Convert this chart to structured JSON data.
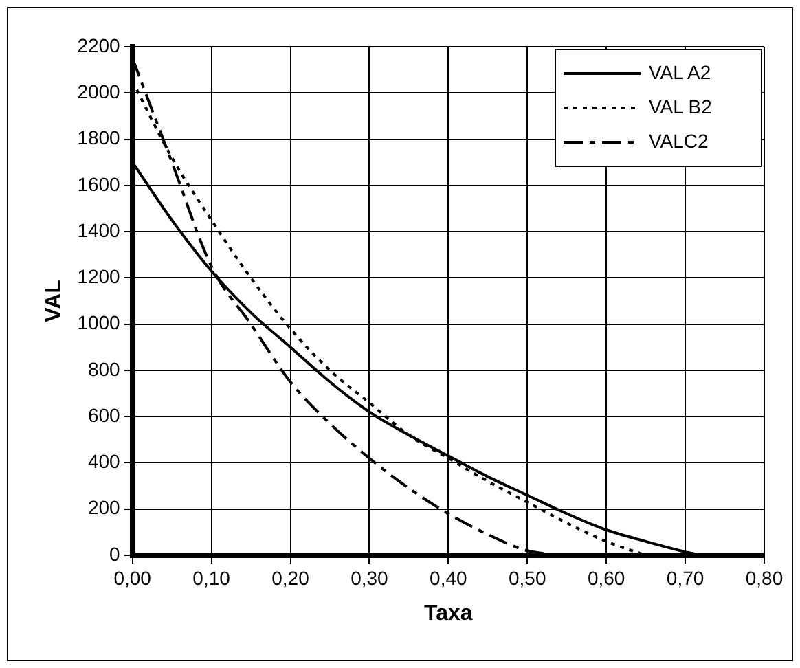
{
  "chart_data": {
    "type": "line",
    "xlabel": "Taxa",
    "ylabel": "VAL",
    "xlim": [
      0,
      0.8
    ],
    "ylim": [
      0,
      2200
    ],
    "xticks": [
      {
        "value": 0,
        "label": "0,00"
      },
      {
        "value": 0.1,
        "label": "0,10"
      },
      {
        "value": 0.2,
        "label": "0,20"
      },
      {
        "value": 0.3,
        "label": "0,30"
      },
      {
        "value": 0.4,
        "label": "0,40"
      },
      {
        "value": 0.5,
        "label": "0,50"
      },
      {
        "value": 0.6,
        "label": "0,60"
      },
      {
        "value": 0.7,
        "label": "0,70"
      },
      {
        "value": 0.8,
        "label": "0,80"
      }
    ],
    "yticks": [
      0,
      200,
      400,
      600,
      800,
      1000,
      1200,
      1400,
      1600,
      1800,
      2000,
      2200
    ],
    "grid": true,
    "legend": "top right",
    "marker": "none",
    "series": [
      {
        "name": "VAL A2",
        "color": "#000000",
        "line_style": "solid",
        "x": [
          0,
          0.05,
          0.1,
          0.15,
          0.2,
          0.25,
          0.3,
          0.35,
          0.4,
          0.45,
          0.5,
          0.55,
          0.6,
          0.65,
          0.7,
          0.72
        ],
        "values": [
          1700,
          1450,
          1230,
          1050,
          900,
          750,
          620,
          520,
          430,
          340,
          260,
          180,
          110,
          60,
          15,
          0
        ]
      },
      {
        "name": "VAL B2",
        "color": "#000000",
        "line_style": "dotted",
        "x": [
          0,
          0.05,
          0.1,
          0.15,
          0.2,
          0.25,
          0.3,
          0.35,
          0.4,
          0.45,
          0.5,
          0.55,
          0.6,
          0.65
        ],
        "values": [
          2050,
          1720,
          1450,
          1200,
          980,
          800,
          660,
          520,
          420,
          320,
          230,
          140,
          60,
          0
        ]
      },
      {
        "name": "VALC2",
        "color": "#000000",
        "line_style": "dashed",
        "x": [
          0,
          0.05,
          0.1,
          0.15,
          0.2,
          0.25,
          0.3,
          0.35,
          0.4,
          0.45,
          0.5,
          0.55
        ],
        "values": [
          2150,
          1700,
          1250,
          1000,
          750,
          570,
          420,
          290,
          180,
          90,
          20,
          0
        ]
      }
    ]
  }
}
